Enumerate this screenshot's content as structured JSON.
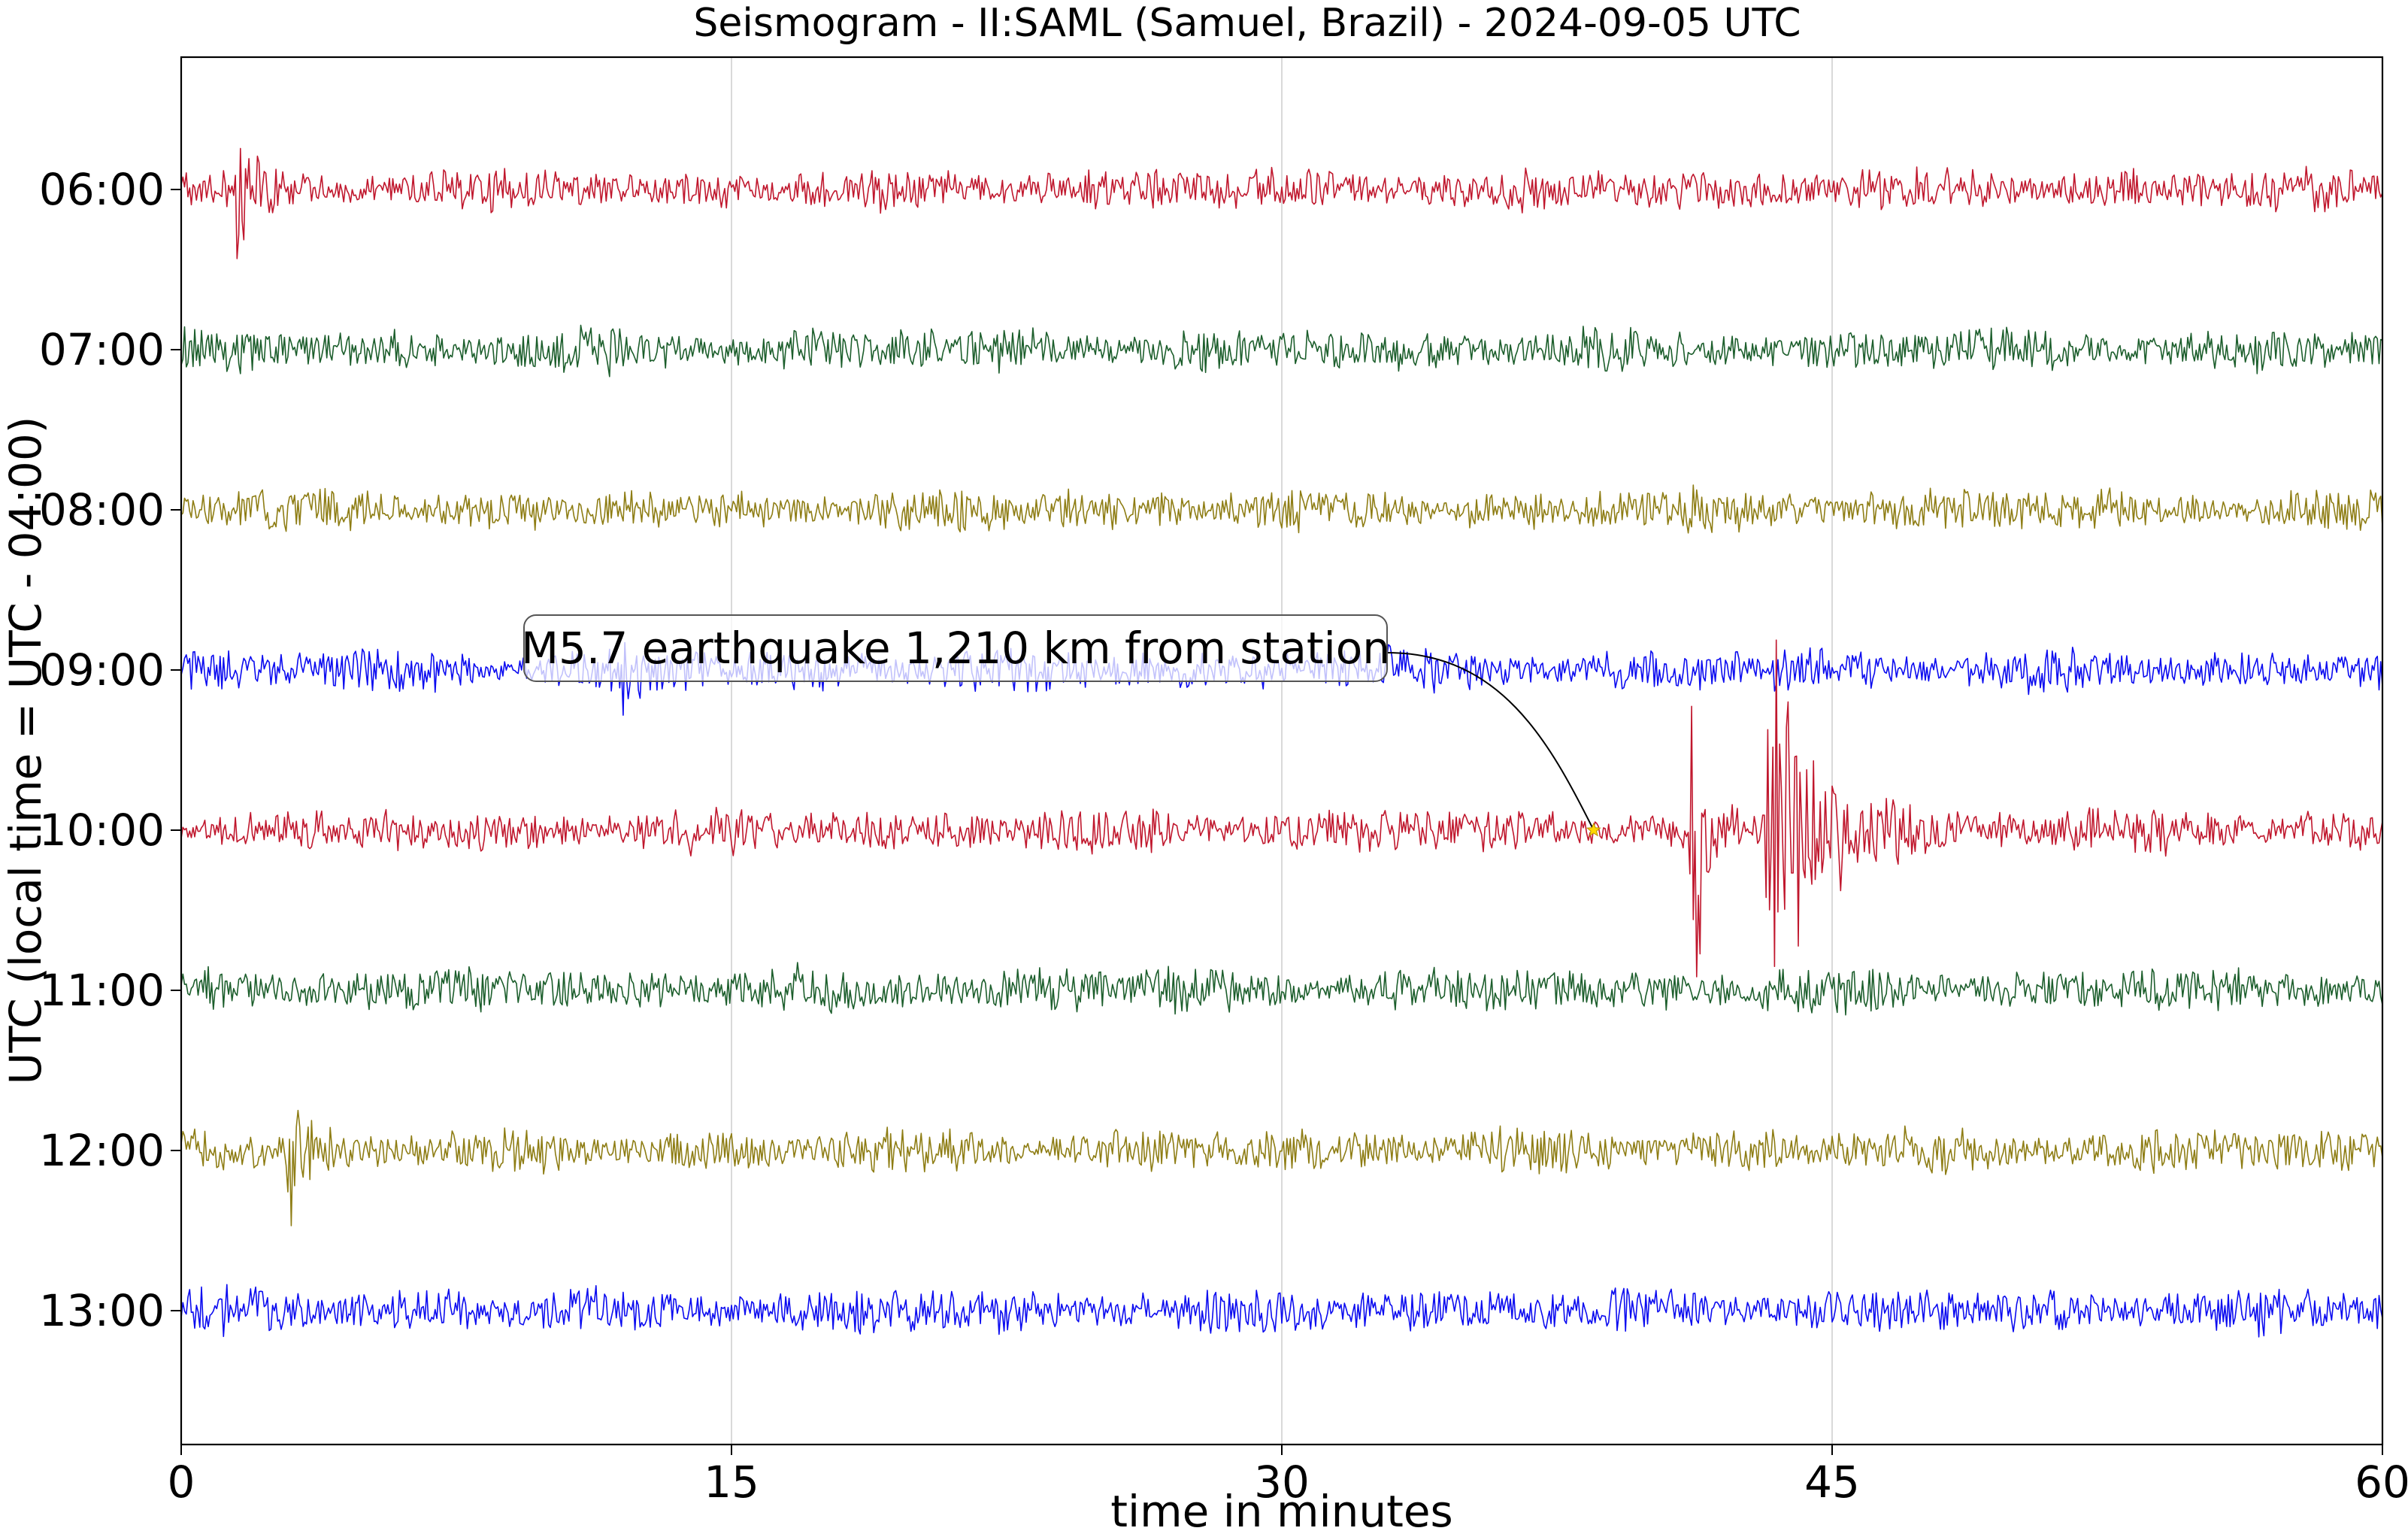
{
  "chart_data": {
    "type": "line",
    "title": "Seismogram - II:SAML (Samuel, Brazil) - 2024-09-05 UTC",
    "xlabel": "time in minutes",
    "ylabel": "UTC (local time = UTC - 04:00)",
    "xlim": [
      0,
      60
    ],
    "x_ticks": [
      0,
      15,
      30,
      45,
      60
    ],
    "x_tick_labels": [
      "0",
      "15",
      "30",
      "45",
      "60"
    ],
    "grid": "vertical",
    "series": [
      {
        "label": "06:00",
        "color": "#c0172d",
        "noise": 1.0,
        "bursts": [
          {
            "t": 1.5,
            "amp": 3.2,
            "decay": 0.35
          }
        ]
      },
      {
        "label": "07:00",
        "color": "#1c5e2c",
        "noise": 1.05,
        "bursts": []
      },
      {
        "label": "08:00",
        "color": "#8e7d14",
        "noise": 1.05,
        "bursts": []
      },
      {
        "label": "09:00",
        "color": "#0b0bf0",
        "noise": 1.05,
        "bursts": [
          {
            "t": 11.9,
            "amp": 2.0,
            "decay": 0.3
          }
        ]
      },
      {
        "label": "10:00",
        "color": "#c0172d",
        "noise": 1.05,
        "bursts": [
          {
            "t": 41.1,
            "amp": 15.0,
            "decay": 0.25
          },
          {
            "t": 43.2,
            "amp": 10.0,
            "decay": 1.3
          }
        ]
      },
      {
        "label": "11:00",
        "color": "#1c5e2c",
        "noise": 1.1,
        "bursts": []
      },
      {
        "label": "12:00",
        "color": "#8e7d14",
        "noise": 1.05,
        "bursts": [
          {
            "t": 2.9,
            "amp": 3.5,
            "decay": 0.4
          }
        ]
      },
      {
        "label": "13:00",
        "color": "#0b0bf0",
        "noise": 1.1,
        "bursts": []
      }
    ],
    "annotation": {
      "text": "M5.7 earthquake 1,210 km from station",
      "target_row": "10:00",
      "target_minute": 38.5,
      "marker_color": "#ffd700"
    }
  }
}
